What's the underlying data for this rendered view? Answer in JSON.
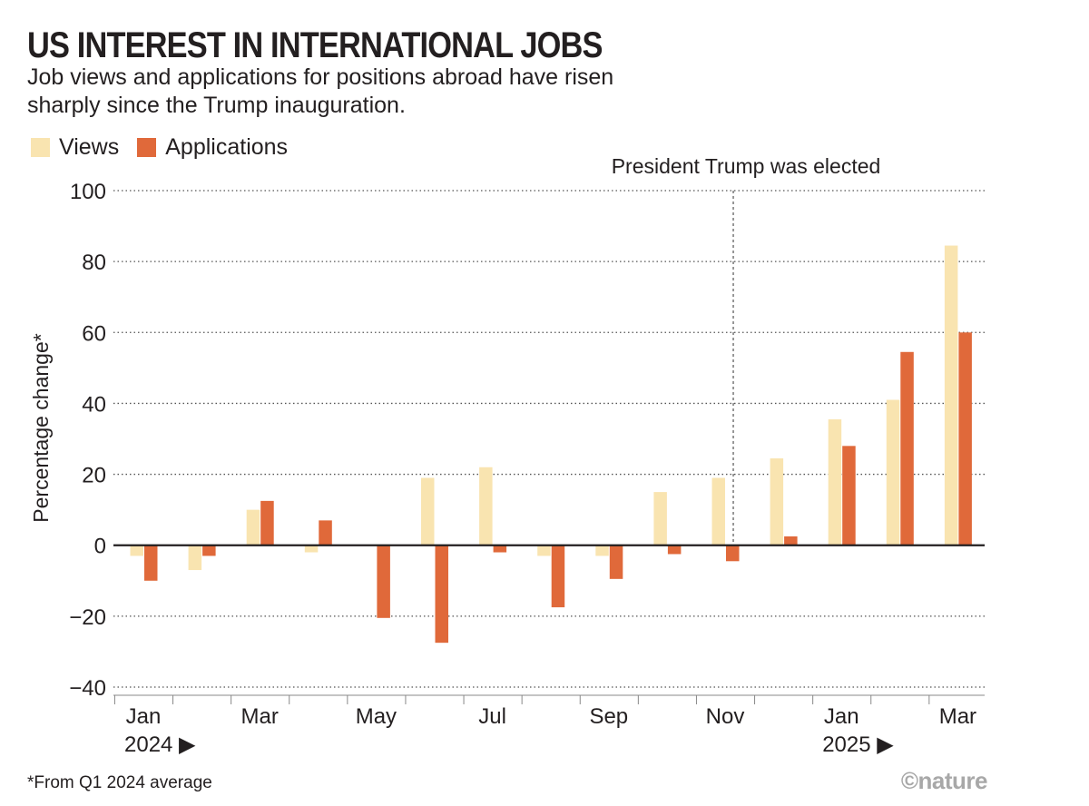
{
  "title": "US INTEREST IN INTERNATIONAL JOBS",
  "subtitle": "Job views and applications for positions abroad have risen sharply since the Trump inauguration.",
  "footnote": "*From Q1 2024 average",
  "credit": "©nature",
  "colors": {
    "views": "#f9e4b0",
    "applications": "#e0693a",
    "text": "#231f20",
    "grid": "#555555"
  },
  "chart_data": {
    "type": "bar",
    "title": "US INTEREST IN INTERNATIONAL JOBS",
    "xlabel": "",
    "ylabel": "Percentage change*",
    "ylim": [
      -40,
      100
    ],
    "yticks": [
      100,
      80,
      60,
      40,
      20,
      0,
      -20,
      -40
    ],
    "ytick_labels": [
      "100",
      "80",
      "60",
      "40",
      "20",
      "0",
      "−20",
      "−40"
    ],
    "categories": [
      "Jan 2024",
      "Feb 2024",
      "Mar 2024",
      "Apr 2024",
      "May 2024",
      "Jun 2024",
      "Jul 2024",
      "Aug 2024",
      "Sep 2024",
      "Oct 2024",
      "Nov 2024",
      "Dec 2024",
      "Jan 2025",
      "Feb 2025",
      "Mar 2025"
    ],
    "tick_labels": [
      "Jan",
      "",
      "Mar",
      "",
      "May",
      "",
      "Jul",
      "",
      "Sep",
      "",
      "Nov",
      "",
      "Jan",
      "",
      "Mar"
    ],
    "year_labels": [
      {
        "index": 0,
        "label": "2024 ▶"
      },
      {
        "index": 12,
        "label": "2025 ▶"
      }
    ],
    "series": [
      {
        "name": "Views",
        "values": [
          -3,
          -7,
          10,
          -2,
          0,
          19,
          22,
          -3,
          -3,
          15,
          19,
          24.5,
          35.5,
          41,
          84.5
        ]
      },
      {
        "name": "Applications",
        "values": [
          -10,
          -3,
          12.5,
          7,
          -20.5,
          -27.5,
          -2,
          -17.5,
          -9.5,
          -2.5,
          -4.5,
          2.5,
          28,
          54.5,
          60
        ]
      }
    ],
    "annotations": [
      {
        "text": "President Trump was elected",
        "x_month_index": 10.25
      }
    ],
    "grid": true,
    "legend": "top-left"
  }
}
